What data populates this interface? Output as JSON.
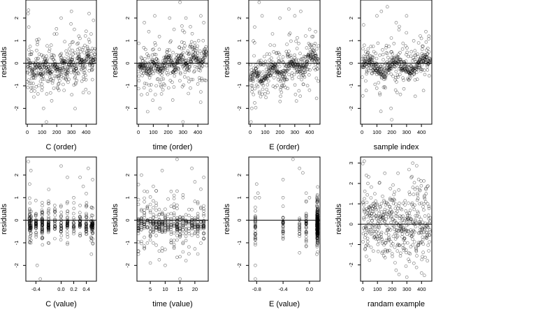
{
  "figure": {
    "background": "#ffffff",
    "point_color": "#000000",
    "point_style": "open-circle",
    "reference_line": {
      "y": 0,
      "color": "#000000"
    }
  },
  "chart_data": [
    {
      "type": "scatter",
      "xlabel": "C (order)",
      "ylabel": "residuals",
      "xlim": [
        -10,
        470
      ],
      "ylim": [
        -2.7,
        2.8
      ],
      "xticks": [
        0,
        100,
        200,
        300,
        400
      ],
      "xtick_labels": [
        "0",
        "100",
        "200",
        "300",
        "400"
      ],
      "yticks": [
        -2,
        -1,
        0,
        1,
        2
      ],
      "ytick_labels": [
        "-2",
        "-1",
        "0",
        "1",
        "2"
      ],
      "hline": 0,
      "generator": "order-C",
      "points": [
        [
          5,
          2.2
        ],
        [
          10,
          1.6
        ],
        [
          8,
          2.35
        ],
        [
          30,
          0.5
        ],
        [
          60,
          0.2
        ],
        [
          110,
          -2.0
        ],
        [
          130,
          -2.6
        ],
        [
          200,
          1.3
        ],
        [
          230,
          2.0
        ],
        [
          300,
          2.3
        ],
        [
          320,
          1.5
        ],
        [
          350,
          1.2
        ],
        [
          420,
          2.2
        ],
        [
          450,
          1.9
        ],
        [
          460,
          0.4
        ],
        [
          40,
          -0.9
        ],
        [
          90,
          -0.8
        ],
        [
          160,
          -0.7
        ],
        [
          250,
          -1.2
        ],
        [
          380,
          -1.3
        ]
      ]
    },
    {
      "type": "scatter",
      "xlabel": "time (order)",
      "ylabel": "residuals",
      "xlim": [
        -10,
        470
      ],
      "ylim": [
        -2.7,
        2.8
      ],
      "xticks": [
        0,
        100,
        200,
        300,
        400
      ],
      "xtick_labels": [
        "0",
        "100",
        "200",
        "300",
        "400"
      ],
      "yticks": [
        -2,
        -1,
        0,
        1,
        2
      ],
      "ytick_labels": [
        "-2",
        "-1",
        "0",
        "1",
        "2"
      ],
      "hline": 0,
      "generator": "order-time",
      "points": [
        [
          40,
          1.8
        ],
        [
          70,
          1.4
        ],
        [
          110,
          2.1
        ],
        [
          145,
          -2.0
        ],
        [
          210,
          2.0
        ],
        [
          240,
          1.5
        ],
        [
          280,
          2.7
        ],
        [
          300,
          -2.6
        ],
        [
          320,
          2.0
        ],
        [
          420,
          2.1
        ],
        [
          440,
          1.8
        ],
        [
          20,
          -1.4
        ],
        [
          120,
          -1.0
        ],
        [
          350,
          -1.1
        ]
      ]
    },
    {
      "type": "scatter",
      "xlabel": "E (order)",
      "ylabel": "residuals",
      "xlim": [
        -10,
        470
      ],
      "ylim": [
        -2.7,
        2.8
      ],
      "xticks": [
        0,
        100,
        200,
        300,
        400
      ],
      "xtick_labels": [
        "0",
        "100",
        "200",
        "300",
        "400"
      ],
      "yticks": [
        -2,
        -1,
        0,
        1,
        2
      ],
      "ytick_labels": [
        "-2",
        "-1",
        "0",
        "1",
        "2"
      ],
      "hline": 0,
      "generator": "order-E",
      "points": [
        [
          5,
          -2.6
        ],
        [
          10,
          -2.0
        ],
        [
          60,
          2.7
        ],
        [
          80,
          2.1
        ],
        [
          30,
          1.6
        ],
        [
          150,
          1.3
        ],
        [
          200,
          2.0
        ],
        [
          260,
          2.4
        ],
        [
          300,
          2.1
        ],
        [
          340,
          2.3
        ],
        [
          400,
          1.5
        ],
        [
          440,
          1.4
        ],
        [
          120,
          -1.3
        ]
      ]
    },
    {
      "type": "scatter",
      "xlabel": "sample index",
      "ylabel": "residuals",
      "xlim": [
        -10,
        470
      ],
      "ylim": [
        -2.7,
        2.8
      ],
      "xticks": [
        0,
        100,
        200,
        300,
        400
      ],
      "xtick_labels": [
        "0",
        "100",
        "200",
        "300",
        "400"
      ],
      "yticks": [
        -2,
        -1,
        0,
        1,
        2
      ],
      "ytick_labels": [
        "-2",
        "-1",
        "0",
        "1",
        "2"
      ],
      "hline": 0,
      "generator": "order-sample",
      "points": [
        [
          10,
          1.7
        ],
        [
          100,
          2.1
        ],
        [
          130,
          2.3
        ],
        [
          170,
          2.5
        ],
        [
          195,
          -2.0
        ],
        [
          200,
          -2.5
        ],
        [
          230,
          1.8
        ],
        [
          300,
          2.1
        ],
        [
          400,
          1.1
        ],
        [
          430,
          1.4
        ],
        [
          450,
          1.2
        ]
      ]
    },
    {
      "type": "scatter",
      "xlabel": "C (value)",
      "ylabel": "residuals",
      "xlim": [
        -0.56,
        0.56
      ],
      "ylim": [
        -2.7,
        2.8
      ],
      "xticks": [
        -0.4,
        0.0,
        0.2,
        0.4
      ],
      "xtick_labels": [
        "-0.4",
        "0.0",
        "0.2",
        "0.4"
      ],
      "yticks": [
        -2,
        -1,
        0,
        1,
        2
      ],
      "ytick_labels": [
        "-2",
        "-1",
        "0",
        "1",
        "2"
      ],
      "hline": 0,
      "generator": "value-C",
      "points": [
        [
          -0.52,
          2.6
        ],
        [
          -0.48,
          2.2
        ],
        [
          -0.5,
          1.6
        ],
        [
          -0.38,
          -2.0
        ],
        [
          -0.33,
          -2.6
        ],
        [
          -0.1,
          0.5
        ],
        [
          0.0,
          2.4
        ],
        [
          0.1,
          1.9
        ],
        [
          0.2,
          1.0
        ],
        [
          0.3,
          1.9
        ],
        [
          0.35,
          1.5
        ],
        [
          0.43,
          2.3
        ],
        [
          0.5,
          1.8
        ],
        [
          0.48,
          -0.8
        ],
        [
          0.48,
          -1.5
        ]
      ]
    },
    {
      "type": "scatter",
      "xlabel": "time (value)",
      "ylabel": "residuals",
      "xlim": [
        0.5,
        24.5
      ],
      "ylim": [
        -2.7,
        2.8
      ],
      "xticks": [
        5,
        10,
        15,
        20
      ],
      "xtick_labels": [
        "5",
        "10",
        "15",
        "20"
      ],
      "yticks": [
        -2,
        -1,
        0,
        1,
        2
      ],
      "ytick_labels": [
        "-2",
        "-1",
        "0",
        "1",
        "2"
      ],
      "hline": 0,
      "generator": "value-time",
      "points": [
        [
          2,
          2.0
        ],
        [
          6,
          1.5
        ],
        [
          7,
          1.3
        ],
        [
          9,
          2.2
        ],
        [
          10,
          -2.0
        ],
        [
          13,
          1.1
        ],
        [
          14,
          2.7
        ],
        [
          15,
          -2.6
        ],
        [
          16,
          1.0
        ],
        [
          19,
          2.3
        ],
        [
          20,
          1.7
        ],
        [
          23,
          1.9
        ],
        [
          23,
          0.5
        ],
        [
          23,
          -0.8
        ]
      ]
    },
    {
      "type": "scatter",
      "xlabel": "E (value)",
      "ylabel": "residuals",
      "xlim": [
        -0.92,
        0.16
      ],
      "ylim": [
        -2.7,
        2.8
      ],
      "xticks": [
        -0.8,
        -0.4,
        0.0
      ],
      "xtick_labels": [
        "-0.8",
        "-0.4",
        "0.0"
      ],
      "yticks": [
        -2,
        -1,
        0,
        1,
        2
      ],
      "ytick_labels": [
        "-2",
        "-1",
        "0",
        "1",
        "2"
      ],
      "hline": 0,
      "generator": "value-E",
      "points": [
        [
          -0.82,
          -2.6
        ],
        [
          -0.82,
          -2.0
        ],
        [
          -0.8,
          1.6
        ],
        [
          -0.78,
          1.2
        ],
        [
          -0.76,
          1.0
        ],
        [
          -0.4,
          1.8
        ],
        [
          -0.4,
          1.0
        ],
        [
          -0.25,
          2.7
        ],
        [
          -0.15,
          2.3
        ],
        [
          -0.1,
          2.1
        ],
        [
          -0.05,
          1.2
        ],
        [
          0.0,
          1.0
        ]
      ]
    },
    {
      "type": "scatter",
      "xlabel": "randam example",
      "ylabel": "residuals",
      "xlim": [
        -15,
        470
      ],
      "ylim": [
        -2.8,
        3.3
      ],
      "xticks": [
        0,
        100,
        200,
        300,
        400
      ],
      "xtick_labels": [
        "0",
        "100",
        "200",
        "300",
        "400"
      ],
      "yticks": [
        -2,
        -1,
        0,
        1,
        2,
        3
      ],
      "ytick_labels": [
        "-2",
        "-1",
        "0",
        "1",
        "2",
        "3"
      ],
      "hline": 0,
      "generator": "random",
      "points": [
        [
          10,
          3.1
        ],
        [
          25,
          2.4
        ],
        [
          35,
          2.0
        ],
        [
          150,
          2.5
        ],
        [
          240,
          2.5
        ],
        [
          300,
          -2.6
        ],
        [
          340,
          3.0
        ],
        [
          380,
          2.2
        ],
        [
          400,
          -2.4
        ],
        [
          420,
          1.4
        ],
        [
          440,
          -1.8
        ]
      ]
    }
  ]
}
